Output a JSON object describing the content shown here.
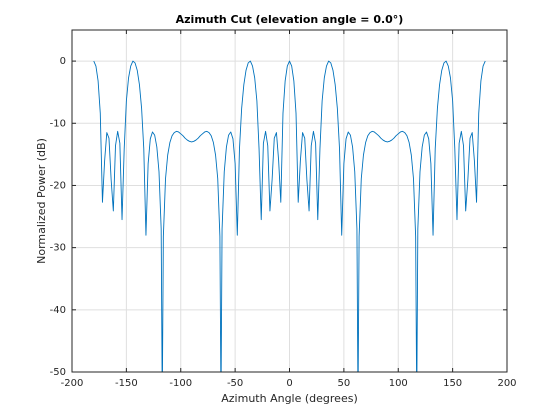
{
  "chart_data": {
    "type": "line",
    "title": "Azimuth Cut (elevation angle = 0.0°)",
    "x_label": "Azimuth Angle (degrees)",
    "y_label": "Normalized Power (dB)",
    "color": "#0072bd",
    "grid": true,
    "xlim": [
      -200,
      200
    ],
    "xticks": [
      -200,
      -150,
      -100,
      -50,
      0,
      50,
      100,
      150,
      200
    ],
    "ylim": [
      -50,
      5
    ],
    "yticks": [
      -50,
      -40,
      -30,
      -20,
      -10,
      0
    ],
    "x": [
      -180,
      -178,
      -176,
      -174,
      -172,
      -170,
      -168,
      -166,
      -164,
      -162,
      -160,
      -158,
      -156,
      -154,
      -152,
      -150,
      -148,
      -146,
      -144,
      -142,
      -140,
      -138,
      -136,
      -134,
      -132,
      -130,
      -128,
      -126,
      -124,
      -122,
      -120,
      -118,
      -117,
      -116,
      -114,
      -112,
      -110,
      -108,
      -106,
      -104,
      -102,
      -100,
      -98,
      -96,
      -94,
      -92,
      -90,
      -88,
      -86,
      -84,
      -82,
      -80,
      -78,
      -76,
      -74,
      -72,
      -70,
      -68,
      -66,
      -64,
      -63,
      -62,
      -60,
      -58,
      -56,
      -54,
      -52,
      -50,
      -48,
      -46,
      -44,
      -42,
      -40,
      -38,
      -36,
      -34,
      -32,
      -30,
      -28,
      -26,
      -24,
      -22,
      -20,
      -18,
      -16,
      -14,
      -12,
      -10,
      -8,
      -6,
      -4,
      -2,
      0,
      2,
      4,
      6,
      8,
      10,
      12,
      14,
      16,
      18,
      20,
      22,
      24,
      26,
      28,
      30,
      32,
      34,
      36,
      38,
      40,
      42,
      44,
      46,
      48,
      50,
      52,
      54,
      56,
      58,
      60,
      62,
      63,
      64,
      66,
      68,
      70,
      72,
      74,
      76,
      78,
      80,
      82,
      84,
      86,
      88,
      90,
      92,
      94,
      96,
      98,
      100,
      102,
      104,
      106,
      108,
      110,
      112,
      114,
      116,
      117,
      118,
      120,
      122,
      124,
      126,
      128,
      130,
      132,
      134,
      136,
      138,
      140,
      142,
      144,
      146,
      148,
      150,
      152,
      154,
      156,
      158,
      160,
      162,
      164,
      166,
      168,
      170,
      172,
      174,
      176,
      178,
      180
    ],
    "values": [
      0,
      -0.8,
      -3.2,
      -8.4,
      -22.7,
      -16,
      -11.5,
      -12.4,
      -19.1,
      -24.1,
      -13.6,
      -11.3,
      -13.2,
      -25.5,
      -14.1,
      -6.4,
      -2.7,
      -0.8,
      0,
      -0.3,
      -1.5,
      -3.8,
      -7.6,
      -14.1,
      -28,
      -16.5,
      -12.5,
      -11.4,
      -11.9,
      -13.8,
      -17.8,
      -27,
      -55,
      -28.2,
      -18.9,
      -15.1,
      -13.1,
      -12,
      -11.5,
      -11.3,
      -11.4,
      -11.7,
      -12,
      -12.4,
      -12.7,
      -12.9,
      -13,
      -12.9,
      -12.7,
      -12.4,
      -12,
      -11.7,
      -11.4,
      -11.3,
      -11.5,
      -12,
      -13.1,
      -15.1,
      -18.9,
      -28.2,
      -55,
      -27,
      -17.8,
      -13.8,
      -11.9,
      -11.4,
      -12.5,
      -16.5,
      -28,
      -14.1,
      -7.6,
      -3.8,
      -1.5,
      -0.3,
      0,
      -0.8,
      -2.7,
      -6.4,
      -14.1,
      -25.5,
      -13.2,
      -11.3,
      -13.6,
      -24.1,
      -19.1,
      -12.4,
      -11.5,
      -16,
      -22.7,
      -8.4,
      -3.2,
      -0.8,
      0,
      -0.8,
      -3.2,
      -8.4,
      -22.7,
      -16,
      -11.5,
      -12.4,
      -19.1,
      -24.1,
      -13.6,
      -11.3,
      -13.2,
      -25.5,
      -14.1,
      -6.4,
      -2.7,
      -0.8,
      0,
      -0.3,
      -1.5,
      -3.8,
      -7.6,
      -14.1,
      -28,
      -16.5,
      -12.5,
      -11.4,
      -11.9,
      -13.8,
      -17.8,
      -27,
      -55,
      -28.2,
      -18.9,
      -15.1,
      -13.1,
      -12,
      -11.5,
      -11.3,
      -11.4,
      -11.7,
      -12,
      -12.4,
      -12.7,
      -12.9,
      -13,
      -12.9,
      -12.7,
      -12.4,
      -12,
      -11.7,
      -11.4,
      -11.3,
      -11.5,
      -12,
      -13.1,
      -15.1,
      -18.9,
      -28.2,
      -55,
      -27,
      -17.8,
      -13.8,
      -11.9,
      -11.4,
      -12.5,
      -16.5,
      -28,
      -14.1,
      -7.6,
      -3.8,
      -1.5,
      -0.3,
      0,
      -0.8,
      -2.7,
      -6.4,
      -14.1,
      -25.5,
      -13.2,
      -11.3,
      -13.6,
      -24.1,
      -19.1,
      -12.4,
      -11.5,
      -16,
      -22.7,
      -8.4,
      -3.2,
      -0.8,
      0
    ]
  }
}
